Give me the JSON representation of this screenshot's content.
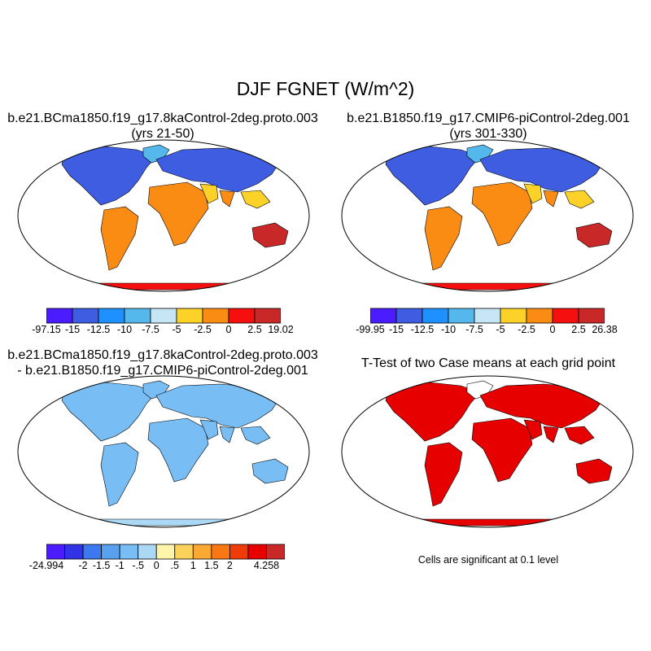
{
  "figure": {
    "title": "DJF FGNET (W/m^2)"
  },
  "panels": [
    {
      "title_line1": "b.e21.BCma1850.f19_g17.8kaControl-2deg.proto.003",
      "title_line2": "(yrs 21-50)",
      "colorbar": {
        "colors": [
          "#4b1cff",
          "#3e5de0",
          "#1e90ff",
          "#55b8ec",
          "#c6e6f6",
          "#fcd228",
          "#fa8c14",
          "#f50f0f",
          "#c82828"
        ],
        "labels": [
          "-97.15",
          "-15",
          "-12.5",
          "-10",
          "-7.5",
          "-5",
          "-2.5",
          "0",
          "2.5",
          "19.02"
        ]
      }
    },
    {
      "title_line1": "b.e21.B1850.f19_g17.CMIP6-piControl-2deg.001",
      "title_line2": "(yrs 301-330)",
      "colorbar": {
        "colors": [
          "#4b1cff",
          "#3e5de0",
          "#1e90ff",
          "#55b8ec",
          "#c6e6f6",
          "#fcd228",
          "#fa8c14",
          "#f50f0f",
          "#c82828"
        ],
        "labels": [
          "-99.95",
          "-15",
          "-12.5",
          "-10",
          "-7.5",
          "-5",
          "-2.5",
          "0",
          "2.5",
          "26.38"
        ]
      }
    },
    {
      "title_line1": "b.e21.BCma1850.f19_g17.8kaControl-2deg.proto.003",
      "title_line2": "- b.e21.B1850.f19_g17.CMIP6-piControl-2deg.001",
      "colorbar": {
        "colors": [
          "#4b1cff",
          "#3232e6",
          "#3c78f0",
          "#5aa0f0",
          "#78bef5",
          "#aad8f5",
          "#fff5aa",
          "#fcd25a",
          "#faaa32",
          "#fa7814",
          "#f03c0a",
          "#e60000",
          "#c82828"
        ],
        "labels": [
          "-24.994",
          "",
          "-2",
          "-1.5",
          "-1",
          "-.5",
          "0",
          ".5",
          "1",
          "1.5",
          "2",
          "",
          "4.258"
        ]
      }
    },
    {
      "title_line1": "T-Test of two Case means at each grid point",
      "title_line2": "",
      "note": "Cells are significant at 0.1 level"
    }
  ]
}
